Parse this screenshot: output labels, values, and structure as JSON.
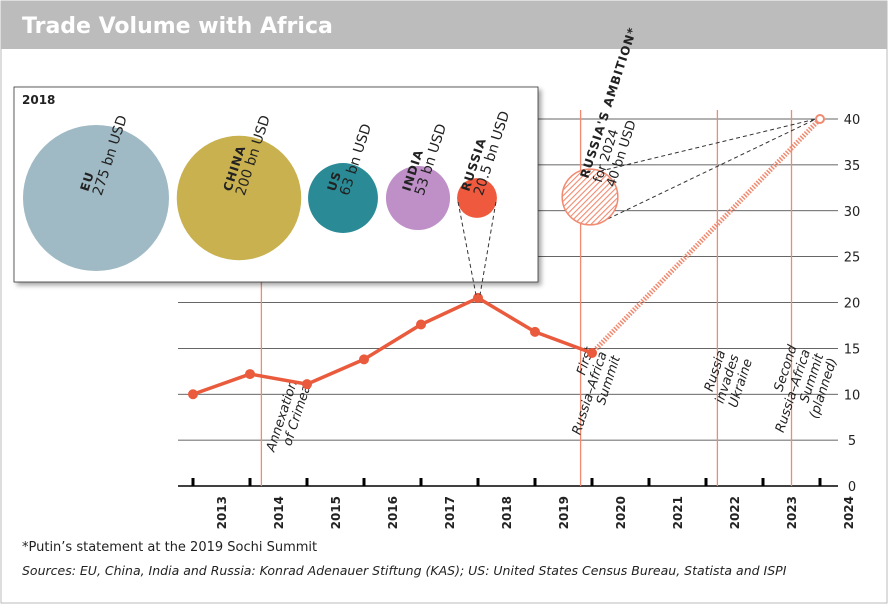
{
  "chart_data": {
    "type": "line",
    "title": "Trade Volume with Africa",
    "x": [
      2013,
      2014,
      2015,
      2016,
      2017,
      2018,
      2019,
      2020
    ],
    "values": [
      10,
      12.2,
      11.1,
      13.8,
      17.6,
      20.5,
      16.8,
      14.5
    ],
    "color": "#ea5a3c",
    "target": {
      "x": 2024,
      "value": 40
    },
    "xlim": [
      2013,
      2024
    ],
    "xticks": [
      2013,
      2014,
      2015,
      2016,
      2017,
      2018,
      2019,
      2020,
      2021,
      2022,
      2023,
      2024
    ],
    "ylim": [
      0,
      40
    ],
    "yticks": [
      0,
      5,
      10,
      15,
      20,
      25,
      30,
      35,
      40
    ],
    "grid": true,
    "events": [
      {
        "x": 2014.2,
        "lines": [
          "Annexation",
          "of Crimea"
        ]
      },
      {
        "x": 2019.8,
        "lines": [
          "First",
          "Russia–Africa",
          "Summit"
        ]
      },
      {
        "x": 2022.2,
        "lines": [
          "Russia",
          "invades",
          "Ukraine"
        ]
      },
      {
        "x": 2023.5,
        "lines": [
          "Second",
          "Russia–Africa",
          "Summit",
          "(planned)"
        ]
      }
    ],
    "ambition": {
      "title": "RUSSIA'S AMBITION*",
      "lines": [
        "for 2024",
        "40 bn USD"
      ],
      "value": 40,
      "color": "#f08a70"
    },
    "inset": {
      "title": "2018",
      "bubbles": [
        {
          "name": "EU",
          "value": 275,
          "label": "275 bn USD",
          "color": "#9fbac4"
        },
        {
          "name": "CHINA",
          "value": 200,
          "label": "200 bn USD",
          "color": "#c9b150"
        },
        {
          "name": "US",
          "value": 63,
          "label": "63 bn USD",
          "color": "#2a8b96"
        },
        {
          "name": "INDIA",
          "value": 53,
          "label": "53 bn USD",
          "color": "#bf90c8"
        },
        {
          "name": "RUSSIA",
          "value": 20.5,
          "label": "20.5 bn USD",
          "color": "#ef5a3e"
        }
      ]
    },
    "footnote": "*Putin’s statement at the 2019 Sochi Summit",
    "source": "Sources: EU, China, India and Russia: Konrad Adenauer Stiftung (KAS); US: United States Census Bureau, Statista and ISPI"
  }
}
